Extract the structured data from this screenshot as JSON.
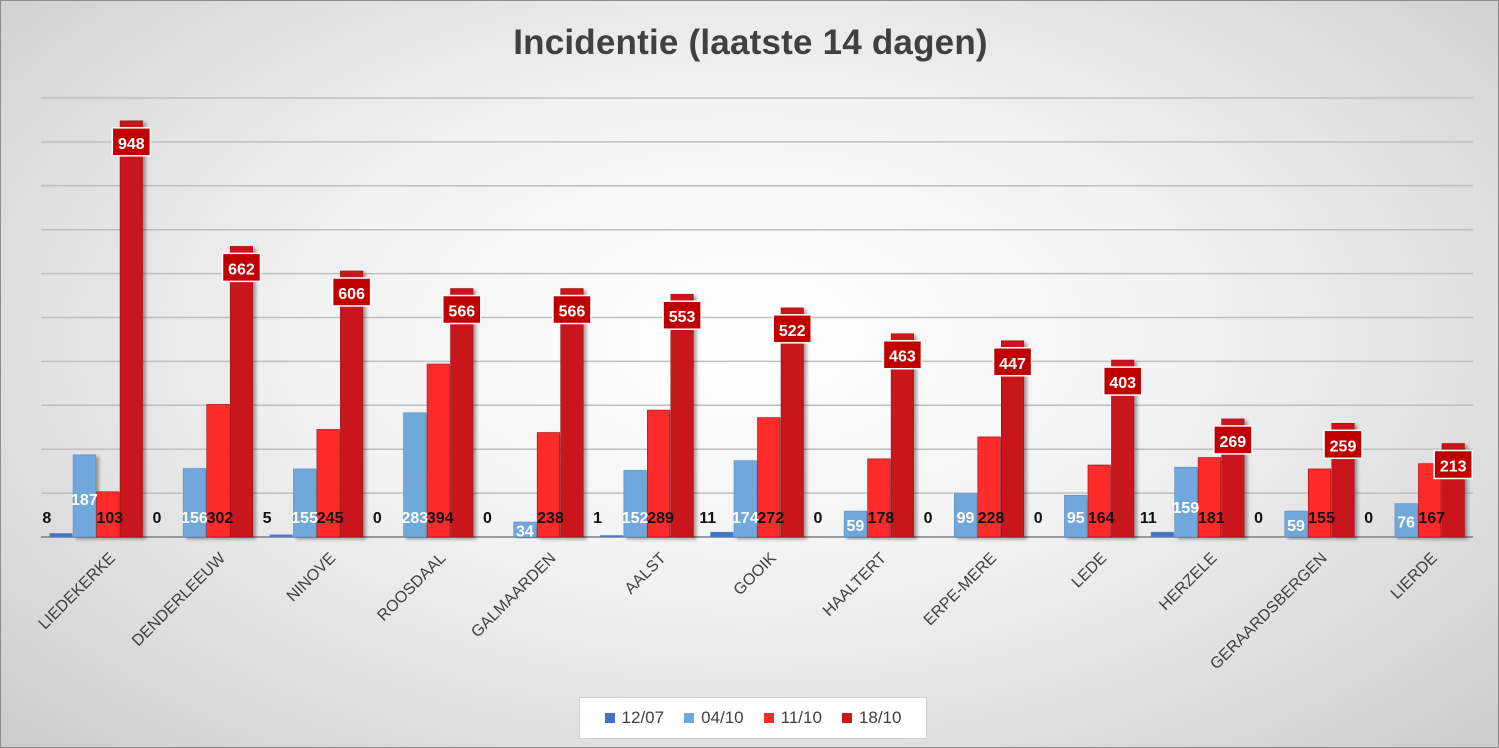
{
  "chart_data": {
    "type": "bar",
    "title": "Incidentie (laatste 14 dagen)",
    "xlabel": "",
    "ylabel": "",
    "ylim": [
      0,
      1000
    ],
    "grid": true,
    "legend_position": "bottom",
    "categories": [
      "LIEDEKERKE",
      "DENDERLEEUW",
      "NINOVE",
      "ROOSDAAL",
      "GALMAARDEN",
      "AALST",
      "GOOIK",
      "HAALTERT",
      "ERPE-MERE",
      "LEDE",
      "HERZELE",
      "GERAARDSBERGEN",
      "LIERDE"
    ],
    "series": [
      {
        "name": "12/07",
        "color": "#4472c4",
        "values": [
          8,
          0,
          5,
          0,
          0,
          1,
          11,
          0,
          0,
          0,
          11,
          0,
          0
        ]
      },
      {
        "name": "04/10",
        "color": "#6fa8dc",
        "values": [
          187,
          156,
          155,
          283,
          34,
          152,
          174,
          59,
          99,
          95,
          159,
          59,
          76
        ]
      },
      {
        "name": "11/10",
        "color": "#ff2a2a",
        "values": [
          103,
          302,
          245,
          394,
          238,
          289,
          272,
          178,
          228,
          164,
          181,
          155,
          167
        ]
      },
      {
        "name": "18/10",
        "color": "#c8191e",
        "values": [
          948,
          662,
          606,
          566,
          566,
          553,
          522,
          463,
          447,
          403,
          269,
          259,
          213
        ]
      }
    ]
  }
}
